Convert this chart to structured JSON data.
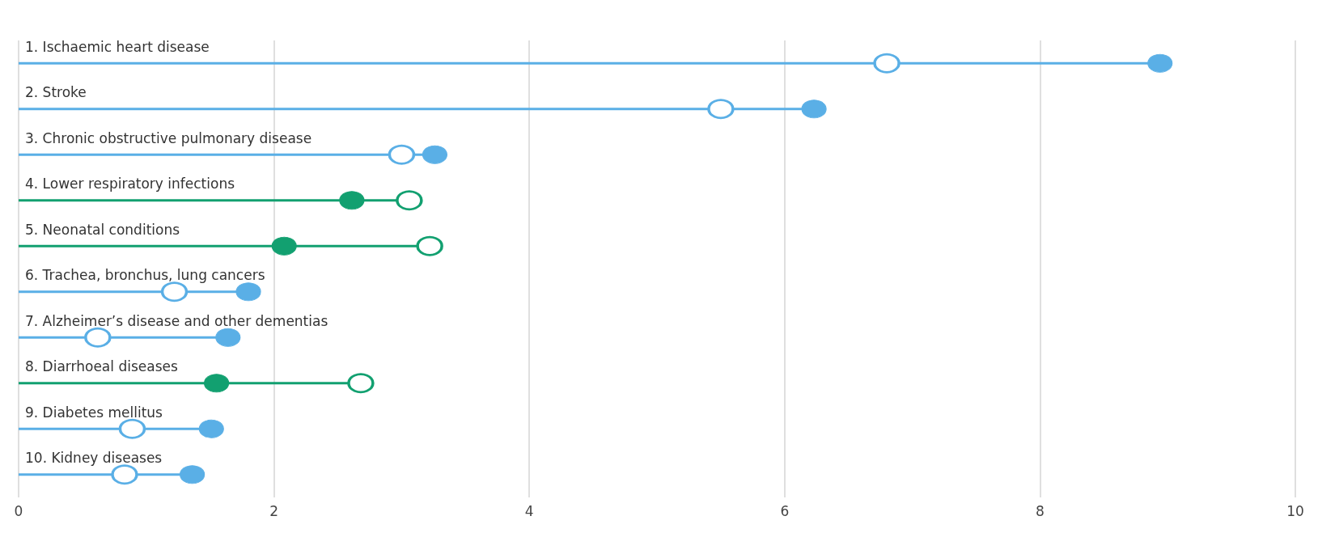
{
  "chart_data": {
    "type": "lollipop",
    "orientation": "horizontal",
    "categories": [
      "1. Ischaemic heart disease",
      "2. Stroke",
      "3. Chronic obstructive pulmonary disease",
      "4. Lower respiratory infections",
      "5. Neonatal conditions",
      "6. Trachea, bronchus, lung cancers",
      "7. Alzheimer’s disease and other dementias",
      "8. Diarrhoeal diseases",
      "9. Diabetes mellitus",
      "10. Kidney diseases"
    ],
    "series": [
      {
        "values": [
          6.8,
          5.5,
          3.0,
          3.06,
          3.22,
          1.22,
          0.62,
          2.68,
          0.89,
          0.83
        ],
        "colors": [
          "#5aafe6",
          "#5aafe6",
          "#5aafe6",
          "#12a070",
          "#12a070",
          "#5aafe6",
          "#5aafe6",
          "#12a070",
          "#5aafe6",
          "#5aafe6"
        ]
      },
      {
        "values": [
          8.94,
          6.23,
          3.26,
          2.61,
          2.08,
          1.8,
          1.64,
          1.55,
          1.51,
          1.36
        ],
        "colors": [
          "#5aafe6",
          "#5aafe6",
          "#5aafe6",
          "#12a070",
          "#12a070",
          "#5aafe6",
          "#5aafe6",
          "#12a070",
          "#5aafe6",
          "#5aafe6"
        ]
      }
    ],
    "xlim": [
      0,
      10
    ],
    "xticks": [
      0,
      2,
      4,
      6,
      8,
      10
    ],
    "grid": "x",
    "marker": "circle"
  }
}
